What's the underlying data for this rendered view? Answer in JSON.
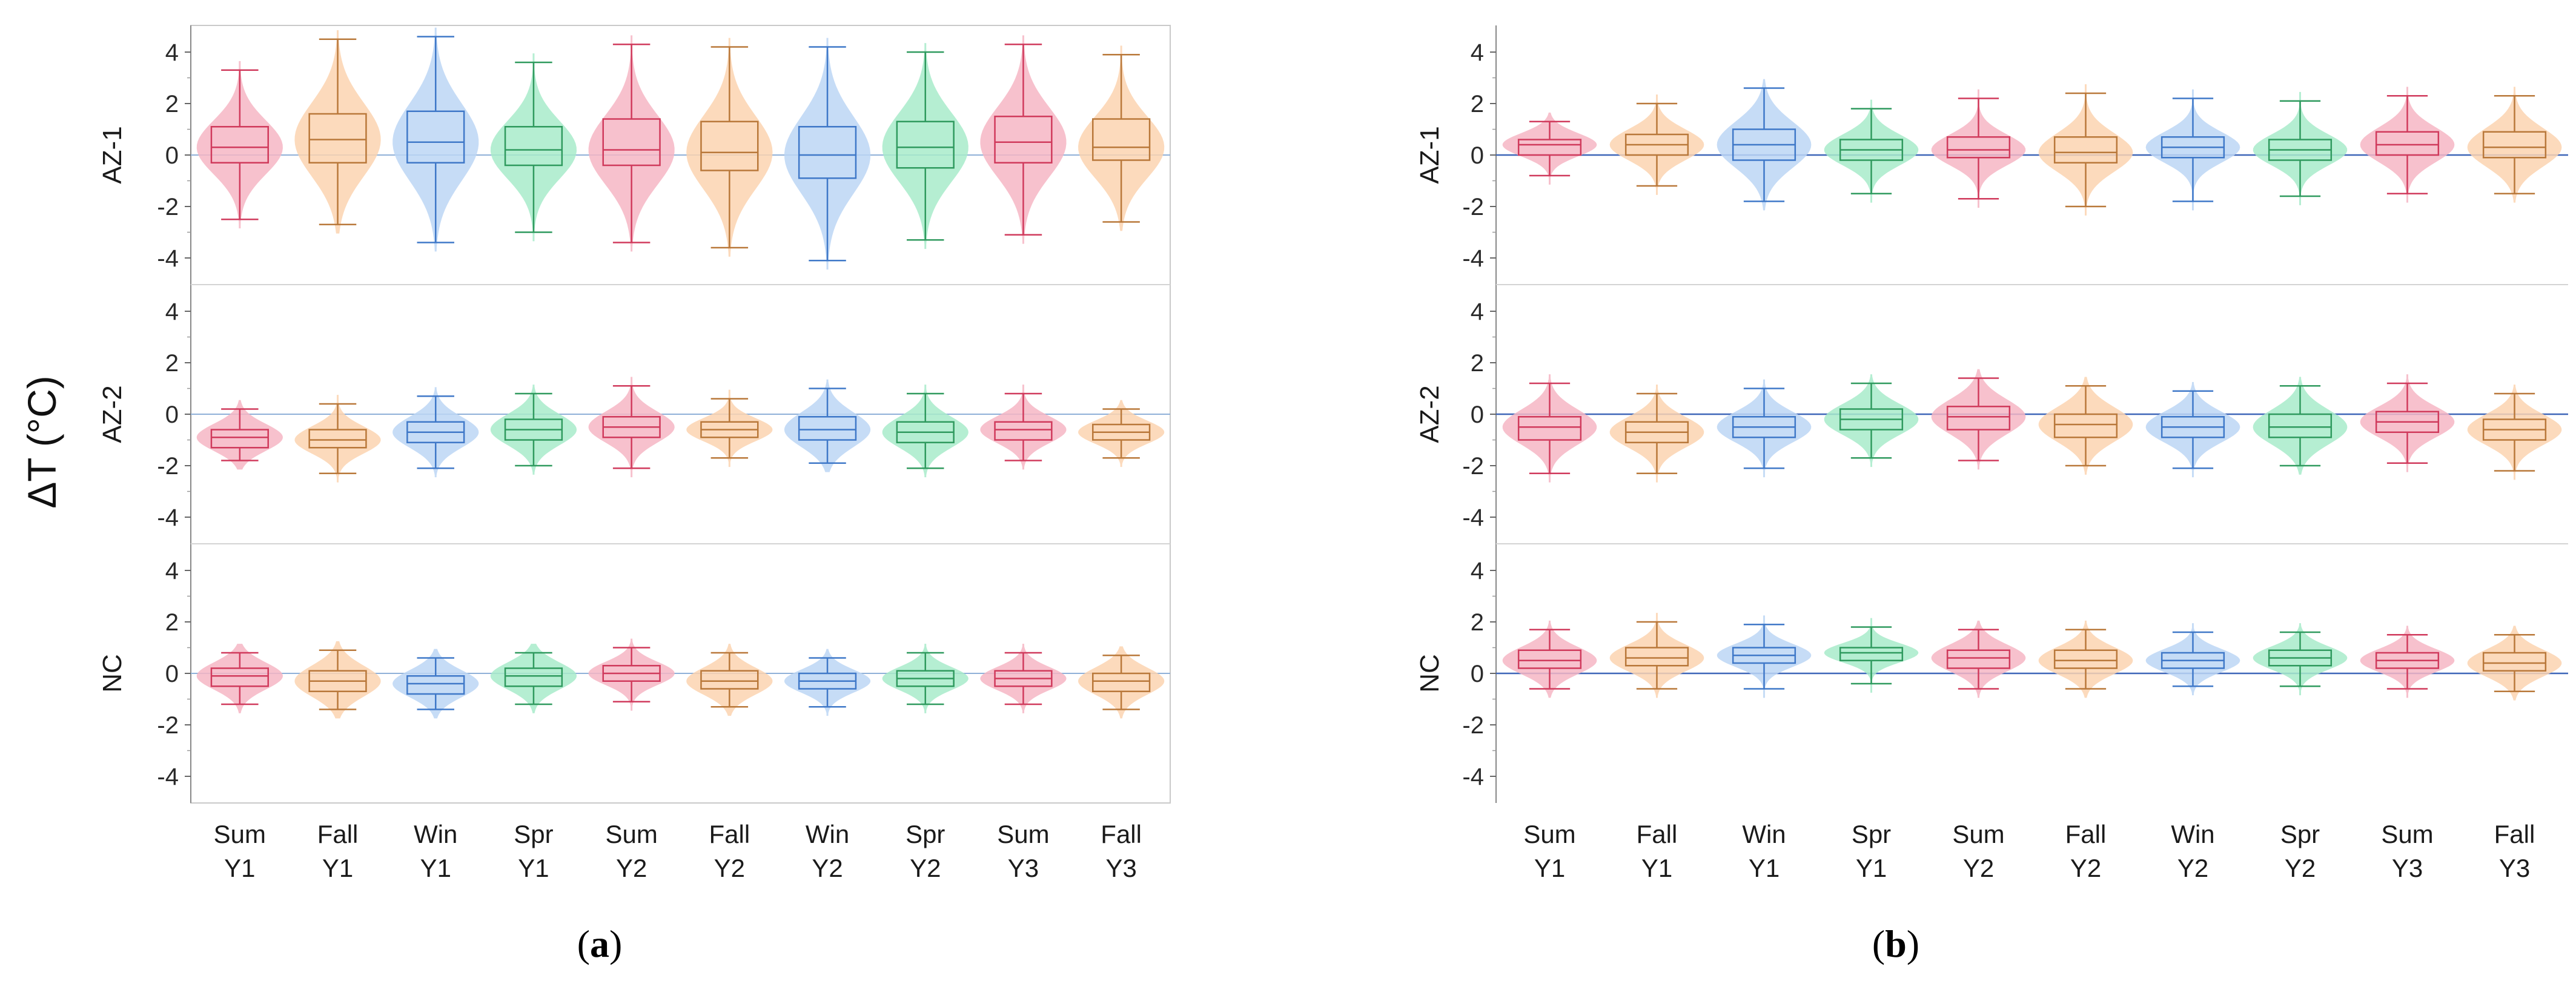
{
  "ylabel": "ΔT (°C)",
  "chart_data": {
    "type": "box-violin",
    "ylabel": "ΔT (°C)",
    "ylim": [
      -4,
      4
    ],
    "yticks": [
      4,
      2,
      0,
      -2,
      -4
    ],
    "categories": [
      [
        "Sum",
        "Y1"
      ],
      [
        "Fall",
        "Y1"
      ],
      [
        "Win",
        "Y1"
      ],
      [
        "Spr",
        "Y1"
      ],
      [
        "Sum",
        "Y2"
      ],
      [
        "Fall",
        "Y2"
      ],
      [
        "Win",
        "Y2"
      ],
      [
        "Spr",
        "Y2"
      ],
      [
        "Sum",
        "Y3"
      ],
      [
        "Fall",
        "Y3"
      ]
    ],
    "season_colors": {
      "Sum": {
        "line": "#d03a5c",
        "fill": "#f6b6c4"
      },
      "Fall": {
        "line": "#b9783a",
        "fill": "#fbd3b0"
      },
      "Win": {
        "line": "#3f78c8",
        "fill": "#bcd6f4"
      },
      "Spr": {
        "line": "#2f9a5e",
        "fill": "#a8ebca"
      }
    },
    "zero_line_colors": {
      "a": "#8fb0d8",
      "b": "#3e66b8"
    },
    "panels": [
      {
        "tag": "a",
        "rows": [
          {
            "label": "AZ-1",
            "groups": [
              {
                "min": -2.5,
                "q1": -0.3,
                "median": 0.3,
                "q3": 1.1,
                "max": 3.3
              },
              {
                "min": -2.7,
                "q1": -0.3,
                "median": 0.6,
                "q3": 1.6,
                "max": 4.5
              },
              {
                "min": -3.4,
                "q1": -0.3,
                "median": 0.5,
                "q3": 1.7,
                "max": 4.6
              },
              {
                "min": -3.0,
                "q1": -0.4,
                "median": 0.2,
                "q3": 1.1,
                "max": 3.6
              },
              {
                "min": -3.4,
                "q1": -0.4,
                "median": 0.2,
                "q3": 1.4,
                "max": 4.3
              },
              {
                "min": -3.6,
                "q1": -0.6,
                "median": 0.1,
                "q3": 1.3,
                "max": 4.2
              },
              {
                "min": -4.1,
                "q1": -0.9,
                "median": 0.0,
                "q3": 1.1,
                "max": 4.2
              },
              {
                "min": -3.3,
                "q1": -0.5,
                "median": 0.3,
                "q3": 1.3,
                "max": 4.0
              },
              {
                "min": -3.1,
                "q1": -0.3,
                "median": 0.5,
                "q3": 1.5,
                "max": 4.3
              },
              {
                "min": -2.6,
                "q1": -0.2,
                "median": 0.3,
                "q3": 1.4,
                "max": 3.9
              }
            ]
          },
          {
            "label": "AZ-2",
            "groups": [
              {
                "min": -1.8,
                "q1": -1.3,
                "median": -0.9,
                "q3": -0.6,
                "max": 0.2
              },
              {
                "min": -2.3,
                "q1": -1.3,
                "median": -1.0,
                "q3": -0.6,
                "max": 0.4
              },
              {
                "min": -2.1,
                "q1": -1.1,
                "median": -0.7,
                "q3": -0.3,
                "max": 0.7
              },
              {
                "min": -2.0,
                "q1": -1.0,
                "median": -0.6,
                "q3": -0.2,
                "max": 0.8
              },
              {
                "min": -2.1,
                "q1": -0.9,
                "median": -0.5,
                "q3": -0.1,
                "max": 1.1
              },
              {
                "min": -1.7,
                "q1": -0.9,
                "median": -0.6,
                "q3": -0.3,
                "max": 0.6
              },
              {
                "min": -1.9,
                "q1": -1.0,
                "median": -0.6,
                "q3": -0.1,
                "max": 1.0
              },
              {
                "min": -2.1,
                "q1": -1.1,
                "median": -0.7,
                "q3": -0.3,
                "max": 0.8
              },
              {
                "min": -1.8,
                "q1": -1.0,
                "median": -0.6,
                "q3": -0.3,
                "max": 0.8
              },
              {
                "min": -1.7,
                "q1": -1.0,
                "median": -0.7,
                "q3": -0.4,
                "max": 0.2
              }
            ]
          },
          {
            "label": "NC",
            "groups": [
              {
                "min": -1.2,
                "q1": -0.5,
                "median": -0.1,
                "q3": 0.2,
                "max": 0.8
              },
              {
                "min": -1.4,
                "q1": -0.7,
                "median": -0.3,
                "q3": 0.1,
                "max": 0.9
              },
              {
                "min": -1.4,
                "q1": -0.8,
                "median": -0.4,
                "q3": -0.1,
                "max": 0.6
              },
              {
                "min": -1.2,
                "q1": -0.5,
                "median": -0.1,
                "q3": 0.2,
                "max": 0.8
              },
              {
                "min": -1.1,
                "q1": -0.3,
                "median": 0.0,
                "q3": 0.3,
                "max": 1.0
              },
              {
                "min": -1.3,
                "q1": -0.6,
                "median": -0.3,
                "q3": 0.1,
                "max": 0.8
              },
              {
                "min": -1.3,
                "q1": -0.6,
                "median": -0.3,
                "q3": 0.0,
                "max": 0.6
              },
              {
                "min": -1.2,
                "q1": -0.5,
                "median": -0.2,
                "q3": 0.1,
                "max": 0.8
              },
              {
                "min": -1.2,
                "q1": -0.5,
                "median": -0.2,
                "q3": 0.1,
                "max": 0.8
              },
              {
                "min": -1.4,
                "q1": -0.7,
                "median": -0.3,
                "q3": 0.0,
                "max": 0.7
              }
            ]
          }
        ]
      },
      {
        "tag": "b",
        "rows": [
          {
            "label": "AZ-1",
            "groups": [
              {
                "min": -0.8,
                "q1": 0.0,
                "median": 0.4,
                "q3": 0.6,
                "max": 1.3
              },
              {
                "min": -1.2,
                "q1": 0.0,
                "median": 0.4,
                "q3": 0.8,
                "max": 2.0
              },
              {
                "min": -1.8,
                "q1": -0.2,
                "median": 0.4,
                "q3": 1.0,
                "max": 2.6
              },
              {
                "min": -1.5,
                "q1": -0.2,
                "median": 0.2,
                "q3": 0.6,
                "max": 1.8
              },
              {
                "min": -1.7,
                "q1": -0.1,
                "median": 0.2,
                "q3": 0.7,
                "max": 2.2
              },
              {
                "min": -2.0,
                "q1": -0.3,
                "median": 0.1,
                "q3": 0.7,
                "max": 2.4
              },
              {
                "min": -1.8,
                "q1": -0.1,
                "median": 0.3,
                "q3": 0.7,
                "max": 2.2
              },
              {
                "min": -1.6,
                "q1": -0.2,
                "median": 0.2,
                "q3": 0.6,
                "max": 2.1
              },
              {
                "min": -1.5,
                "q1": 0.0,
                "median": 0.4,
                "q3": 0.9,
                "max": 2.3
              },
              {
                "min": -1.5,
                "q1": -0.1,
                "median": 0.3,
                "q3": 0.9,
                "max": 2.3
              }
            ]
          },
          {
            "label": "AZ-2",
            "groups": [
              {
                "min": -2.3,
                "q1": -1.0,
                "median": -0.5,
                "q3": -0.1,
                "max": 1.2
              },
              {
                "min": -2.3,
                "q1": -1.1,
                "median": -0.7,
                "q3": -0.3,
                "max": 0.8
              },
              {
                "min": -2.1,
                "q1": -0.9,
                "median": -0.5,
                "q3": -0.1,
                "max": 1.0
              },
              {
                "min": -1.7,
                "q1": -0.6,
                "median": -0.2,
                "q3": 0.2,
                "max": 1.2
              },
              {
                "min": -1.8,
                "q1": -0.6,
                "median": -0.1,
                "q3": 0.3,
                "max": 1.4
              },
              {
                "min": -2.0,
                "q1": -0.9,
                "median": -0.4,
                "q3": 0.0,
                "max": 1.1
              },
              {
                "min": -2.1,
                "q1": -0.9,
                "median": -0.5,
                "q3": -0.1,
                "max": 0.9
              },
              {
                "min": -2.0,
                "q1": -0.9,
                "median": -0.5,
                "q3": 0.0,
                "max": 1.1
              },
              {
                "min": -1.9,
                "q1": -0.7,
                "median": -0.3,
                "q3": 0.1,
                "max": 1.2
              },
              {
                "min": -2.2,
                "q1": -1.0,
                "median": -0.6,
                "q3": -0.2,
                "max": 0.8
              }
            ]
          },
          {
            "label": "NC",
            "groups": [
              {
                "min": -0.6,
                "q1": 0.2,
                "median": 0.5,
                "q3": 0.9,
                "max": 1.7
              },
              {
                "min": -0.6,
                "q1": 0.3,
                "median": 0.6,
                "q3": 1.0,
                "max": 2.0
              },
              {
                "min": -0.6,
                "q1": 0.4,
                "median": 0.7,
                "q3": 1.0,
                "max": 1.9
              },
              {
                "min": -0.4,
                "q1": 0.5,
                "median": 0.8,
                "q3": 1.0,
                "max": 1.8
              },
              {
                "min": -0.6,
                "q1": 0.2,
                "median": 0.6,
                "q3": 0.9,
                "max": 1.7
              },
              {
                "min": -0.6,
                "q1": 0.2,
                "median": 0.5,
                "q3": 0.9,
                "max": 1.7
              },
              {
                "min": -0.5,
                "q1": 0.2,
                "median": 0.5,
                "q3": 0.8,
                "max": 1.6
              },
              {
                "min": -0.5,
                "q1": 0.3,
                "median": 0.6,
                "q3": 0.9,
                "max": 1.6
              },
              {
                "min": -0.6,
                "q1": 0.2,
                "median": 0.5,
                "q3": 0.8,
                "max": 1.5
              },
              {
                "min": -0.7,
                "q1": 0.1,
                "median": 0.4,
                "q3": 0.8,
                "max": 1.5
              }
            ]
          }
        ]
      }
    ]
  }
}
